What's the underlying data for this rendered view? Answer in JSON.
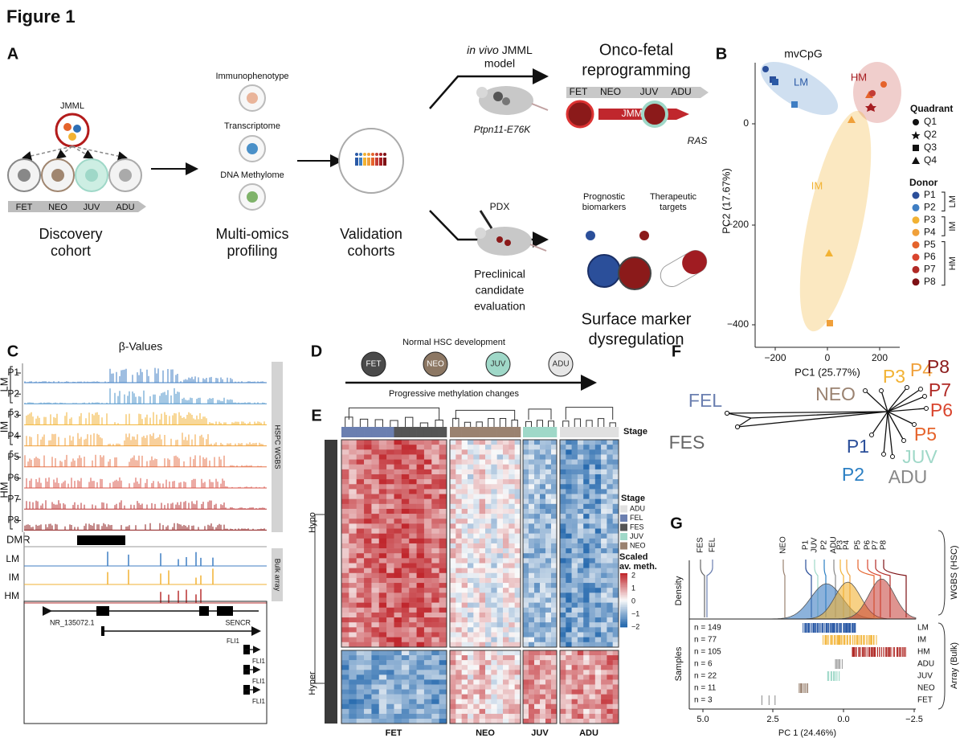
{
  "title": "Figure 1",
  "panel_a": {
    "label": "A",
    "jmml": "JMML",
    "stages": [
      "FET",
      "NEO",
      "JUV",
      "ADU"
    ],
    "discovery": [
      "Discovery",
      "cohort"
    ],
    "profiling_items": [
      "Immunophenotype",
      "Transcriptome",
      "DNA Methylome"
    ],
    "profiling": [
      "Multi-omics",
      "profiling"
    ],
    "validation": [
      "Validation",
      "cohorts"
    ],
    "in_vivo": "in vivo",
    "jmml_model": [
      "JMML",
      "model"
    ],
    "mouse_model": "Ptpn11-E76K",
    "pdx": "PDX",
    "preclinical": [
      "Preclinical",
      "candidate",
      "evaluation"
    ],
    "onco": [
      "Onco-fetal",
      "reprogramming"
    ],
    "onco_stages": [
      "FET",
      "NEO",
      "JUV",
      "ADU"
    ],
    "jmml_arrow": "JMML",
    "ras": "RAS",
    "prognostic": [
      "Prognostic",
      "biomarkers"
    ],
    "therapeutic": [
      "Therapeutic",
      "targets"
    ],
    "surface": [
      "Surface marker",
      "dysregulation"
    ]
  },
  "panel_b": {
    "label": "B",
    "title": "mvCpG",
    "x_label": "PC1 (25.77%)",
    "y_label": "PC2 (17.67%)",
    "xticks": [
      "−200",
      "0",
      "200"
    ],
    "yticks": [
      "0",
      "−200",
      "−400"
    ],
    "groups": [
      "LM",
      "IM",
      "HM"
    ],
    "quadrant_title": "Quadrant",
    "quadrants": [
      "Q1",
      "Q2",
      "Q3",
      "Q4"
    ],
    "donor_title": "Donor",
    "donors": [
      "P1",
      "P2",
      "P3",
      "P4",
      "P5",
      "P6",
      "P7",
      "P8"
    ],
    "donor_groups": [
      "LM",
      "IM",
      "HM"
    ]
  },
  "panel_c": {
    "label": "C",
    "title": "β-Values",
    "groups": [
      "LM",
      "IM",
      "HM"
    ],
    "tracks": [
      "P1",
      "P2",
      "P3",
      "P4",
      "P5",
      "P6",
      "P7",
      "P8"
    ],
    "side_label": "HSPC WGBS",
    "dmr": "DMR",
    "bulk_tracks": [
      "LM",
      "IM",
      "HM"
    ],
    "bulk_label": "Bulk array",
    "genes": [
      "NR_135072.1",
      "SENCR",
      "FLI1",
      "FLI1",
      "FLI1",
      "FLI1"
    ]
  },
  "panel_d": {
    "label": "D",
    "title": "Normal HSC development",
    "stages": [
      "FET",
      "NEO",
      "JUV",
      "ADU"
    ],
    "caption": "Progressive methylation changes"
  },
  "panel_e": {
    "label": "E",
    "stage_label": "Stage",
    "rows": [
      "Hypo",
      "Hyper"
    ],
    "columns": [
      "FET",
      "NEO",
      "JUV",
      "ADU"
    ],
    "legend_title": "Stage",
    "legend_items": [
      "ADU",
      "FEL",
      "FES",
      "JUV",
      "NEO"
    ],
    "scale_title": [
      "Scaled",
      "av. meth."
    ],
    "scale_ticks": [
      "2",
      "1",
      "0",
      "−1",
      "−2"
    ]
  },
  "panel_f": {
    "label": "F",
    "leaves": [
      "FEL",
      "FES",
      "NEO",
      "P3",
      "P4",
      "P8",
      "P7",
      "P6",
      "P5",
      "JUV",
      "P1",
      "P2",
      "ADU"
    ]
  },
  "panel_g": {
    "label": "G",
    "top_labels": [
      "FES",
      "FEL",
      "NEO",
      "P1",
      "JUV",
      "P2",
      "ADU",
      "P3",
      "P4",
      "P5",
      "P6",
      "P7",
      "P8"
    ],
    "density_label": "Density",
    "samples_label": "Samples",
    "counts": [
      "n = 149",
      "n = 77",
      "n = 105",
      "n = 6",
      "n = 22",
      "n = 11",
      "n = 3"
    ],
    "row_labels": [
      "LM",
      "IM",
      "HM",
      "ADU",
      "JUV",
      "NEO",
      "FET"
    ],
    "wgbs": "WGBS (HSC)",
    "array": "Array (Bulk)",
    "xticks": [
      "5.0",
      "2.5",
      "0.0",
      "−2.5"
    ],
    "x_label": "PC 1 (24.46%)"
  }
}
